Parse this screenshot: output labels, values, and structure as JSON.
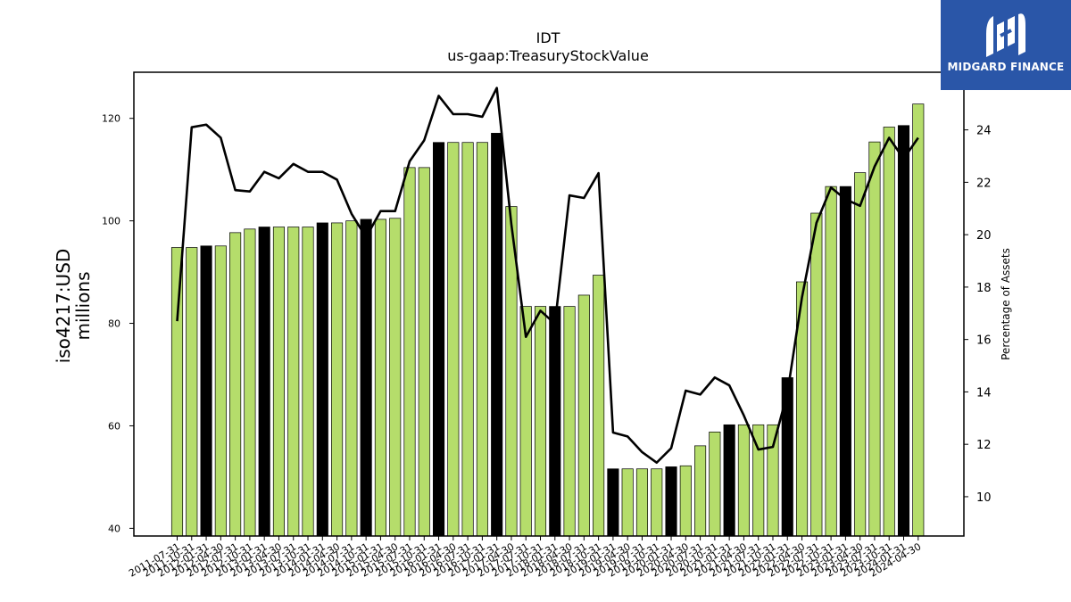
{
  "chart_data": {
    "type": "bar",
    "title": "IDT",
    "subtitle": "us-gaap:TreasuryStockValue",
    "ylabel_left": "iso4217:USD\nmillions",
    "ylabel_right": "Percentage of Assets",
    "ylim_left": [
      38.5,
      129
    ],
    "ylim_right": [
      8.5,
      26.2
    ],
    "yticks_left": [
      40,
      60,
      80,
      100,
      120
    ],
    "yticks_right": [
      10,
      12,
      14,
      16,
      18,
      20,
      22,
      24
    ],
    "grid": false,
    "bar_color": "#b5dd6b",
    "highlight_color": "#000000",
    "line_color": "#000000",
    "categories": [
      "2011-07-31",
      "2011-10-31",
      "2012-01-31",
      "2012-04-30",
      "2012-07-31",
      "2012-10-31",
      "2013-01-31",
      "2013-04-30",
      "2013-07-31",
      "2013-10-31",
      "2014-01-31",
      "2014-04-30",
      "2014-07-31",
      "2014-10-31",
      "2015-01-31",
      "2015-04-30",
      "2015-07-31",
      "2015-10-31",
      "2016-01-31",
      "2016-04-30",
      "2016-07-31",
      "2016-10-31",
      "2017-01-31",
      "2017-04-30",
      "2017-07-31",
      "2017-10-31",
      "2018-01-31",
      "2018-04-30",
      "2018-07-31",
      "2018-10-31",
      "2019-01-31",
      "2019-04-30",
      "2019-07-31",
      "2019-10-31",
      "2020-01-31",
      "2020-04-30",
      "2020-07-31",
      "2020-10-31",
      "2021-01-31",
      "2021-04-30",
      "2021-07-31",
      "2021-10-31",
      "2022-01-31",
      "2022-04-30",
      "2022-07-31",
      "2022-10-31",
      "2023-01-31",
      "2023-04-30",
      "2023-07-31",
      "2023-10-31",
      "2024-01-31",
      "2024-04-30"
    ],
    "tick_labels": [
      "2011-07-31",
      "2011-10-31",
      "2012-01-31",
      "2012-04-30",
      "2012-07-31",
      "2012-10-31",
      "2013-01-31",
      "2013-04-30",
      "2013-07-31",
      "2013-10-31",
      "2014-01-31",
      "2014-04-30",
      "2014-07-31",
      "2014-10-31",
      "2015-01-31",
      "2015-04-30",
      "2015-07-31",
      "2015-10-31",
      "2016-01-31",
      "2016-04-30",
      "2016-07-31",
      "2016-10-31",
      "2017-01-31",
      "2017-04-30",
      "2017-07-31",
      "2017-10-31",
      "2018-01-31",
      "2018-04-30",
      "2018-07-31",
      "2018-10-31",
      "2019-01-31",
      "2019-04-30",
      "2019-07-31",
      "2019-10-31",
      "2020-01-31",
      "2020-04-30",
      "2020-07-31",
      "2020-10-31",
      "2021-01-31",
      "2021-04-30",
      "2021-07-31",
      "2021-10-31",
      "2022-01-31",
      "2022-04-30",
      "2022-07-31",
      "2022-10-31",
      "2023-01-31",
      "2023-04-30",
      "2023-07-31",
      "2023-10-31",
      "2024-01-31",
      "2024-04-30"
    ],
    "series": [
      {
        "kind": "bar",
        "axis": "left",
        "values": [
          94.8,
          94.8,
          95.1,
          95.1,
          97.7,
          98.4,
          98.8,
          98.8,
          98.8,
          98.8,
          99.6,
          99.6,
          100.0,
          100.3,
          100.3,
          100.5,
          110.4,
          110.4,
          115.3,
          115.3,
          115.3,
          115.3,
          117.1,
          102.8,
          83.3,
          83.3,
          83.3,
          83.3,
          85.5,
          89.4,
          51.6,
          51.6,
          51.6,
          51.6,
          52.0,
          52.2,
          56.1,
          58.8,
          60.2,
          60.2,
          60.2,
          60.2,
          69.4,
          88.1,
          101.5,
          106.7,
          106.7,
          109.4,
          115.4,
          118.3,
          118.6,
          122.8
        ],
        "highlight": [
          false,
          false,
          true,
          false,
          false,
          false,
          true,
          false,
          false,
          false,
          true,
          false,
          false,
          true,
          false,
          false,
          false,
          false,
          true,
          false,
          false,
          false,
          true,
          false,
          false,
          false,
          true,
          false,
          false,
          false,
          true,
          false,
          false,
          false,
          true,
          false,
          false,
          false,
          true,
          false,
          false,
          false,
          true,
          false,
          false,
          false,
          true,
          false,
          false,
          false,
          true,
          false
        ]
      },
      {
        "kind": "line",
        "axis": "right",
        "values": [
          16.7,
          24.1,
          24.2,
          23.7,
          21.7,
          21.65,
          22.4,
          22.15,
          22.7,
          22.4,
          22.4,
          22.1,
          20.8,
          19.9,
          20.9,
          20.9,
          22.8,
          23.6,
          25.3,
          24.6,
          24.6,
          24.5,
          25.6,
          20.4,
          16.1,
          17.1,
          16.6,
          21.5,
          21.4,
          22.35,
          12.45,
          12.3,
          11.7,
          11.3,
          11.85,
          14.05,
          13.9,
          14.55,
          14.25,
          13.1,
          11.8,
          11.9,
          13.95,
          17.6,
          20.45,
          21.8,
          21.35,
          21.1,
          22.6,
          23.7,
          22.9,
          23.7
        ]
      }
    ]
  },
  "logo": {
    "text": "MIDGARD FINANCE"
  }
}
